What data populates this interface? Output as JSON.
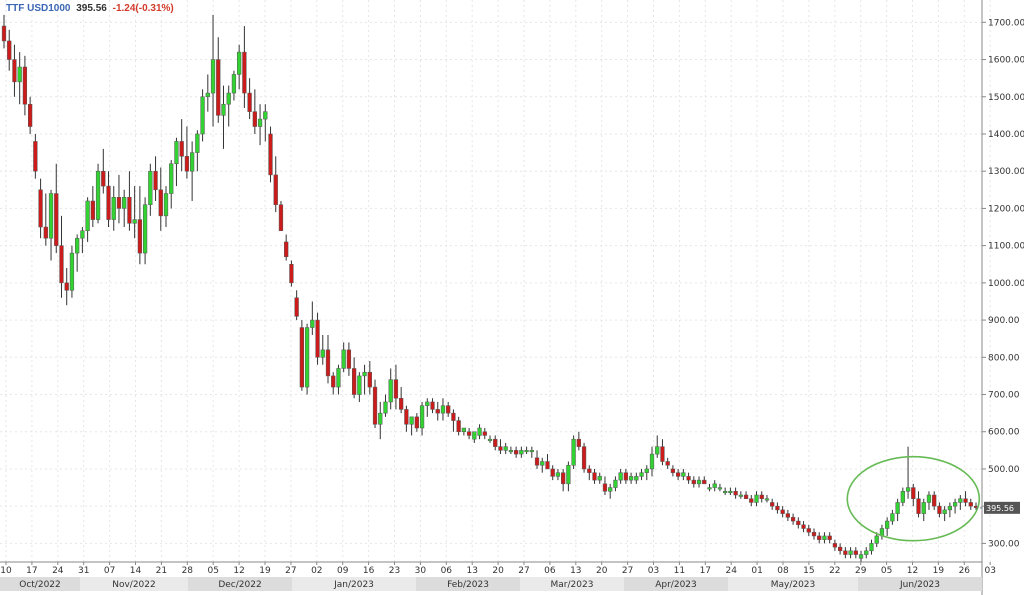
{
  "header": {
    "symbol": "TTF USD1000",
    "last": "395.56",
    "change": "-1.24(-0.31%)"
  },
  "chart_data": {
    "type": "candlestick",
    "title": "TTF USD1000",
    "ylim": [
      250,
      1760
    ],
    "y_ticks": [
      "300.00",
      "400.00",
      "500.00",
      "600.00",
      "700.00",
      "800.00",
      "900.00",
      "1000.00",
      "1100.00",
      "1200.00",
      "1300.00",
      "1400.00",
      "1500.00",
      "1600.00",
      "1700.00"
    ],
    "x_ticks": [
      "10",
      "17",
      "24",
      "31",
      "07",
      "14",
      "21",
      "28",
      "05",
      "12",
      "19",
      "27",
      "02",
      "09",
      "16",
      "23",
      "30",
      "06",
      "13",
      "20",
      "27",
      "06",
      "13",
      "20",
      "27",
      "03",
      "11",
      "17",
      "24",
      "01",
      "08",
      "15",
      "22",
      "29",
      "05",
      "12",
      "19",
      "26",
      "03"
    ],
    "months": [
      "Oct/2022",
      "Nov/2022",
      "Dec/2022",
      "Jan/2023",
      "Feb/2023",
      "Mar/2023",
      "Apr/2023",
      "May/2023",
      "Jun/2023"
    ],
    "grid": true,
    "last_value": "395.56",
    "colors": {
      "up": "#33d233",
      "down": "#cc1b1b",
      "circle": "#66bb55"
    },
    "candles": [
      [
        1690,
        1720,
        1630,
        1650
      ],
      [
        1650,
        1680,
        1570,
        1600
      ],
      [
        1600,
        1640,
        1500,
        1540
      ],
      [
        1540,
        1620,
        1480,
        1580
      ],
      [
        1580,
        1610,
        1450,
        1480
      ],
      [
        1480,
        1500,
        1400,
        1420
      ],
      [
        1380,
        1400,
        1280,
        1300
      ],
      [
        1250,
        1280,
        1120,
        1150
      ],
      [
        1150,
        1240,
        1100,
        1120
      ],
      [
        1120,
        1250,
        1060,
        1240
      ],
      [
        1240,
        1320,
        1080,
        1100
      ],
      [
        1100,
        1180,
        960,
        1000
      ],
      [
        1000,
        1040,
        940,
        980
      ],
      [
        980,
        1100,
        960,
        1080
      ],
      [
        1080,
        1130,
        1030,
        1120
      ],
      [
        1120,
        1150,
        1080,
        1140
      ],
      [
        1140,
        1230,
        1110,
        1220
      ],
      [
        1220,
        1260,
        1150,
        1170
      ],
      [
        1170,
        1320,
        1160,
        1300
      ],
      [
        1300,
        1360,
        1240,
        1260
      ],
      [
        1260,
        1300,
        1150,
        1170
      ],
      [
        1170,
        1260,
        1140,
        1230
      ],
      [
        1230,
        1290,
        1160,
        1200
      ],
      [
        1200,
        1250,
        1150,
        1230
      ],
      [
        1230,
        1300,
        1140,
        1160
      ],
      [
        1160,
        1260,
        1120,
        1170
      ],
      [
        1170,
        1260,
        1050,
        1080
      ],
      [
        1080,
        1230,
        1050,
        1210
      ],
      [
        1210,
        1320,
        1180,
        1300
      ],
      [
        1300,
        1340,
        1220,
        1250
      ],
      [
        1250,
        1310,
        1140,
        1180
      ],
      [
        1180,
        1260,
        1150,
        1240
      ],
      [
        1240,
        1330,
        1200,
        1320
      ],
      [
        1320,
        1390,
        1260,
        1380
      ],
      [
        1380,
        1440,
        1300,
        1340
      ],
      [
        1340,
        1420,
        1280,
        1300
      ],
      [
        1300,
        1380,
        1220,
        1350
      ],
      [
        1350,
        1410,
        1300,
        1400
      ],
      [
        1400,
        1520,
        1380,
        1500
      ],
      [
        1500,
        1560,
        1460,
        1510
      ],
      [
        1510,
        1720,
        1420,
        1600
      ],
      [
        1600,
        1660,
        1430,
        1450
      ],
      [
        1450,
        1530,
        1360,
        1480
      ],
      [
        1480,
        1530,
        1420,
        1510
      ],
      [
        1510,
        1570,
        1490,
        1560
      ],
      [
        1560,
        1640,
        1520,
        1620
      ],
      [
        1620,
        1690,
        1470,
        1510
      ],
      [
        1510,
        1550,
        1440,
        1460
      ],
      [
        1460,
        1520,
        1400,
        1420
      ],
      [
        1420,
        1480,
        1370,
        1440
      ],
      [
        1440,
        1480,
        1380,
        1460
      ],
      [
        1400,
        1420,
        1270,
        1290
      ],
      [
        1290,
        1340,
        1190,
        1210
      ],
      [
        1210,
        1220,
        1140,
        1140
      ],
      [
        1110,
        1130,
        1060,
        1070
      ],
      [
        1050,
        1060,
        990,
        1000
      ],
      [
        960,
        980,
        900,
        910
      ],
      [
        880,
        900,
        710,
        720
      ],
      [
        720,
        890,
        700,
        880
      ],
      [
        880,
        950,
        860,
        900
      ],
      [
        900,
        920,
        780,
        800
      ],
      [
        800,
        860,
        780,
        820
      ],
      [
        820,
        860,
        730,
        750
      ],
      [
        750,
        760,
        700,
        720
      ],
      [
        720,
        780,
        700,
        770
      ],
      [
        770,
        840,
        760,
        820
      ],
      [
        820,
        840,
        750,
        770
      ],
      [
        770,
        800,
        690,
        700
      ],
      [
        700,
        760,
        680,
        750
      ],
      [
        750,
        780,
        700,
        760
      ],
      [
        760,
        790,
        700,
        720
      ],
      [
        720,
        740,
        610,
        620
      ],
      [
        620,
        680,
        580,
        650
      ],
      [
        650,
        700,
        640,
        680
      ],
      [
        680,
        770,
        660,
        740
      ],
      [
        740,
        780,
        660,
        690
      ],
      [
        690,
        720,
        650,
        660
      ],
      [
        660,
        670,
        600,
        620
      ],
      [
        620,
        640,
        590,
        640
      ],
      [
        640,
        650,
        600,
        610
      ],
      [
        610,
        680,
        590,
        670
      ],
      [
        670,
        690,
        640,
        680
      ],
      [
        680,
        690,
        650,
        660
      ],
      [
        660,
        680,
        630,
        650
      ],
      [
        650,
        690,
        630,
        670
      ],
      [
        670,
        680,
        640,
        650
      ],
      [
        650,
        660,
        600,
        630
      ],
      [
        630,
        640,
        590,
        600
      ],
      [
        600,
        610,
        590,
        610
      ],
      [
        600,
        610,
        580,
        590
      ],
      [
        580,
        600,
        570,
        600
      ],
      [
        590,
        620,
        580,
        610
      ],
      [
        600,
        610,
        580,
        590
      ],
      [
        580,
        590,
        570,
        580
      ],
      [
        580,
        590,
        550,
        560
      ],
      [
        560,
        580,
        540,
        550
      ],
      [
        550,
        570,
        540,
        560
      ],
      [
        550,
        560,
        540,
        550
      ],
      [
        550,
        560,
        530,
        540
      ],
      [
        540,
        560,
        530,
        550
      ],
      [
        550,
        560,
        540,
        550
      ],
      [
        550,
        560,
        530,
        550
      ],
      [
        530,
        550,
        500,
        510
      ],
      [
        510,
        530,
        490,
        520
      ],
      [
        520,
        540,
        500,
        500
      ],
      [
        500,
        510,
        470,
        480
      ],
      [
        480,
        500,
        470,
        490
      ],
      [
        490,
        500,
        440,
        460
      ],
      [
        460,
        520,
        440,
        510
      ],
      [
        510,
        590,
        500,
        580
      ],
      [
        580,
        600,
        550,
        560
      ],
      [
        560,
        570,
        490,
        500
      ],
      [
        500,
        510,
        470,
        490
      ],
      [
        490,
        500,
        460,
        470
      ],
      [
        470,
        490,
        460,
        480
      ],
      [
        460,
        480,
        430,
        440
      ],
      [
        440,
        460,
        420,
        450
      ],
      [
        450,
        480,
        440,
        470
      ],
      [
        470,
        500,
        460,
        490
      ],
      [
        490,
        500,
        460,
        470
      ],
      [
        470,
        490,
        460,
        480
      ],
      [
        470,
        490,
        460,
        480
      ],
      [
        480,
        500,
        470,
        490
      ],
      [
        490,
        510,
        470,
        500
      ],
      [
        500,
        560,
        480,
        540
      ],
      [
        540,
        590,
        530,
        560
      ],
      [
        560,
        580,
        510,
        520
      ],
      [
        520,
        530,
        500,
        510
      ],
      [
        500,
        510,
        480,
        490
      ],
      [
        490,
        500,
        470,
        480
      ],
      [
        480,
        500,
        470,
        490
      ],
      [
        480,
        490,
        460,
        470
      ],
      [
        470,
        480,
        450,
        460
      ],
      [
        460,
        480,
        450,
        470
      ],
      [
        470,
        480,
        460,
        460
      ],
      [
        450,
        460,
        440,
        450
      ],
      [
        450,
        470,
        440,
        460
      ],
      [
        450,
        460,
        440,
        450
      ],
      [
        440,
        450,
        430,
        440
      ],
      [
        440,
        450,
        430,
        440
      ],
      [
        440,
        450,
        420,
        430
      ],
      [
        430,
        440,
        420,
        430
      ],
      [
        430,
        440,
        420,
        420
      ],
      [
        420,
        430,
        400,
        410
      ],
      [
        410,
        440,
        400,
        430
      ],
      [
        430,
        440,
        410,
        420
      ],
      [
        420,
        430,
        410,
        420
      ],
      [
        410,
        420,
        390,
        400
      ],
      [
        400,
        410,
        380,
        390
      ],
      [
        390,
        400,
        370,
        380
      ],
      [
        380,
        390,
        360,
        370
      ],
      [
        370,
        380,
        350,
        360
      ],
      [
        360,
        370,
        340,
        350
      ],
      [
        350,
        360,
        330,
        340
      ],
      [
        340,
        350,
        320,
        330
      ],
      [
        330,
        340,
        310,
        320
      ],
      [
        320,
        330,
        300,
        310
      ],
      [
        310,
        330,
        300,
        320
      ],
      [
        320,
        330,
        300,
        310
      ],
      [
        300,
        310,
        280,
        290
      ],
      [
        290,
        300,
        270,
        280
      ],
      [
        280,
        290,
        260,
        270
      ],
      [
        270,
        290,
        260,
        280
      ],
      [
        280,
        290,
        260,
        270
      ],
      [
        260,
        280,
        250,
        270
      ],
      [
        270,
        290,
        260,
        280
      ],
      [
        280,
        310,
        270,
        300
      ],
      [
        300,
        330,
        290,
        320
      ],
      [
        320,
        350,
        310,
        340
      ],
      [
        340,
        370,
        320,
        360
      ],
      [
        360,
        390,
        350,
        380
      ],
      [
        380,
        420,
        360,
        410
      ],
      [
        410,
        450,
        400,
        440
      ],
      [
        440,
        560,
        420,
        450
      ],
      [
        450,
        460,
        400,
        420
      ],
      [
        420,
        440,
        370,
        380
      ],
      [
        380,
        420,
        360,
        410
      ],
      [
        410,
        440,
        390,
        430
      ],
      [
        430,
        440,
        390,
        400
      ],
      [
        400,
        410,
        370,
        380
      ],
      [
        380,
        400,
        360,
        390
      ],
      [
        390,
        410,
        370,
        400
      ],
      [
        400,
        420,
        380,
        410
      ],
      [
        410,
        430,
        390,
        420
      ],
      [
        420,
        440,
        400,
        410
      ],
      [
        410,
        420,
        390,
        400
      ],
      [
        400,
        410,
        390,
        396
      ]
    ]
  }
}
